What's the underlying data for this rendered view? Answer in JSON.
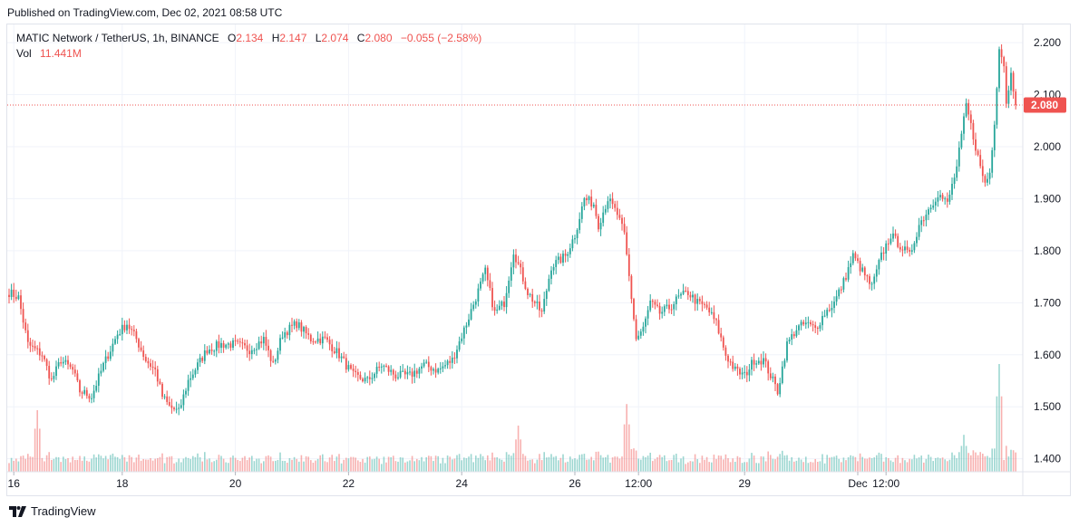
{
  "published_text": "Published on TradingView.com, Dec 02, 2021 08:58 UTC",
  "legend": {
    "symbol": "MATIC Network / TetherUS, 1h, BINANCE",
    "o_label": "O",
    "o_value": "2.134",
    "h_label": "H",
    "h_value": "2.147",
    "l_label": "L",
    "l_value": "2.074",
    "c_label": "C",
    "c_value": "2.080",
    "change": "−0.055 (−2.58%)",
    "vol_label": "Vol",
    "vol_value": "11.441M"
  },
  "footer_brand": "TradingView",
  "colors": {
    "up": "#26a69a",
    "down": "#ef5350",
    "grid": "#f0f3fa",
    "text": "#131722"
  },
  "chart_data": {
    "type": "candlestick",
    "title": "MATIC Network / TetherUS, 1h, BINANCE",
    "y_ticks": [
      "2.200",
      "2.100",
      "2.000",
      "1.900",
      "1.800",
      "1.700",
      "1.600",
      "1.500",
      "1.400"
    ],
    "y_tick_values": [
      2.2,
      2.1,
      2.0,
      1.9,
      1.8,
      1.7,
      1.6,
      1.5,
      1.4
    ],
    "ylim": [
      1.375,
      2.235
    ],
    "x_ticks": [
      "16",
      "18",
      "20",
      "22",
      "24",
      "26",
      "12:00",
      "29",
      "Dec",
      "12:00"
    ],
    "x_tick_candle_index": [
      2,
      48,
      96,
      144,
      192,
      240,
      267,
      312,
      360,
      372
    ],
    "last_price": "2.080",
    "last_value": 2.08,
    "volume_label": "Vol",
    "volume_last": "11.441M",
    "key_points": [
      {
        "i": 0,
        "p": 1.72
      },
      {
        "i": 4,
        "p": 1.71
      },
      {
        "i": 8,
        "p": 1.62
      },
      {
        "i": 14,
        "p": 1.6
      },
      {
        "i": 18,
        "p": 1.55
      },
      {
        "i": 22,
        "p": 1.59
      },
      {
        "i": 27,
        "p": 1.57
      },
      {
        "i": 30,
        "p": 1.53
      },
      {
        "i": 35,
        "p": 1.52
      },
      {
        "i": 40,
        "p": 1.58
      },
      {
        "i": 46,
        "p": 1.64
      },
      {
        "i": 50,
        "p": 1.66
      },
      {
        "i": 54,
        "p": 1.63
      },
      {
        "i": 58,
        "p": 1.59
      },
      {
        "i": 62,
        "p": 1.57
      },
      {
        "i": 65,
        "p": 1.52
      },
      {
        "i": 68,
        "p": 1.5
      },
      {
        "i": 72,
        "p": 1.49
      },
      {
        "i": 76,
        "p": 1.55
      },
      {
        "i": 80,
        "p": 1.58
      },
      {
        "i": 84,
        "p": 1.61
      },
      {
        "i": 90,
        "p": 1.62
      },
      {
        "i": 96,
        "p": 1.62
      },
      {
        "i": 102,
        "p": 1.61
      },
      {
        "i": 108,
        "p": 1.63
      },
      {
        "i": 112,
        "p": 1.58
      },
      {
        "i": 116,
        "p": 1.64
      },
      {
        "i": 122,
        "p": 1.66
      },
      {
        "i": 128,
        "p": 1.63
      },
      {
        "i": 134,
        "p": 1.63
      },
      {
        "i": 140,
        "p": 1.6
      },
      {
        "i": 146,
        "p": 1.56
      },
      {
        "i": 152,
        "p": 1.55
      },
      {
        "i": 158,
        "p": 1.58
      },
      {
        "i": 164,
        "p": 1.56
      },
      {
        "i": 170,
        "p": 1.56
      },
      {
        "i": 176,
        "p": 1.58
      },
      {
        "i": 182,
        "p": 1.57
      },
      {
        "i": 188,
        "p": 1.59
      },
      {
        "i": 194,
        "p": 1.66
      },
      {
        "i": 198,
        "p": 1.71
      },
      {
        "i": 202,
        "p": 1.76
      },
      {
        "i": 206,
        "p": 1.68
      },
      {
        "i": 210,
        "p": 1.7
      },
      {
        "i": 214,
        "p": 1.8
      },
      {
        "i": 220,
        "p": 1.72
      },
      {
        "i": 226,
        "p": 1.68
      },
      {
        "i": 230,
        "p": 1.77
      },
      {
        "i": 236,
        "p": 1.79
      },
      {
        "i": 240,
        "p": 1.83
      },
      {
        "i": 244,
        "p": 1.9
      },
      {
        "i": 248,
        "p": 1.89
      },
      {
        "i": 250,
        "p": 1.85
      },
      {
        "i": 254,
        "p": 1.9
      },
      {
        "i": 258,
        "p": 1.87
      },
      {
        "i": 261,
        "p": 1.83
      },
      {
        "i": 263,
        "p": 1.75
      },
      {
        "i": 266,
        "p": 1.63
      },
      {
        "i": 269,
        "p": 1.65
      },
      {
        "i": 272,
        "p": 1.7
      },
      {
        "i": 276,
        "p": 1.68
      },
      {
        "i": 280,
        "p": 1.69
      },
      {
        "i": 284,
        "p": 1.71
      },
      {
        "i": 288,
        "p": 1.72
      },
      {
        "i": 292,
        "p": 1.7
      },
      {
        "i": 296,
        "p": 1.69
      },
      {
        "i": 300,
        "p": 1.66
      },
      {
        "i": 304,
        "p": 1.6
      },
      {
        "i": 308,
        "p": 1.57
      },
      {
        "i": 312,
        "p": 1.56
      },
      {
        "i": 316,
        "p": 1.59
      },
      {
        "i": 320,
        "p": 1.59
      },
      {
        "i": 324,
        "p": 1.55
      },
      {
        "i": 326,
        "p": 1.53
      },
      {
        "i": 330,
        "p": 1.62
      },
      {
        "i": 334,
        "p": 1.65
      },
      {
        "i": 338,
        "p": 1.66
      },
      {
        "i": 342,
        "p": 1.65
      },
      {
        "i": 346,
        "p": 1.68
      },
      {
        "i": 350,
        "p": 1.7
      },
      {
        "i": 354,
        "p": 1.74
      },
      {
        "i": 358,
        "p": 1.79
      },
      {
        "i": 362,
        "p": 1.76
      },
      {
        "i": 366,
        "p": 1.73
      },
      {
        "i": 370,
        "p": 1.79
      },
      {
        "i": 374,
        "p": 1.83
      },
      {
        "i": 378,
        "p": 1.81
      },
      {
        "i": 382,
        "p": 1.79
      },
      {
        "i": 386,
        "p": 1.85
      },
      {
        "i": 390,
        "p": 1.88
      },
      {
        "i": 394,
        "p": 1.91
      },
      {
        "i": 398,
        "p": 1.89
      },
      {
        "i": 402,
        "p": 1.96
      },
      {
        "i": 406,
        "p": 2.08
      },
      {
        "i": 410,
        "p": 2.0
      },
      {
        "i": 412,
        "p": 1.96
      },
      {
        "i": 414,
        "p": 1.93
      },
      {
        "i": 416,
        "p": 1.95
      },
      {
        "i": 418,
        "p": 2.05
      },
      {
        "i": 420,
        "p": 2.19
      },
      {
        "i": 422,
        "p": 2.16
      },
      {
        "i": 423,
        "p": 2.08
      },
      {
        "i": 425,
        "p": 2.15
      },
      {
        "i": 427,
        "p": 2.08
      }
    ],
    "volume_peaks": [
      {
        "i": 12,
        "v": 1.0
      },
      {
        "i": 216,
        "v": 0.75
      },
      {
        "i": 262,
        "v": 1.1
      },
      {
        "i": 420,
        "v": 1.75
      },
      {
        "i": 405,
        "v": 0.6
      }
    ]
  }
}
